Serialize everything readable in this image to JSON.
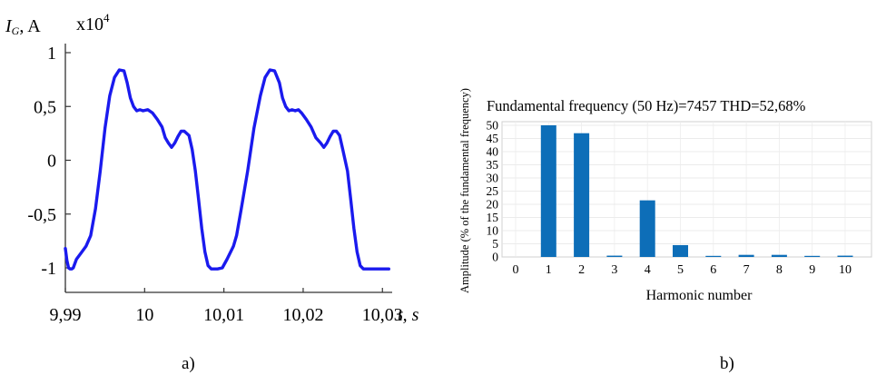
{
  "figure": {
    "panel_a_caption": "a)",
    "panel_b_caption": "b)"
  },
  "chart_data": [
    {
      "type": "line",
      "panel": "a",
      "title": "",
      "ylabel_symbol": "I",
      "ylabel_sub": "G",
      "ylabel_unit": ", A",
      "multiplier_base": "x10",
      "multiplier_exp": "4",
      "xlabel_t": "t",
      "xlabel_unit": ", s",
      "xlim": [
        9.99,
        10.031
      ],
      "ylim": [
        -1.05,
        1.05
      ],
      "x_ticks": [
        9.99,
        10.0,
        10.01,
        10.02,
        10.03
      ],
      "x_tick_labels": [
        "9,99",
        "10",
        "10,01",
        "10,02",
        "10,03"
      ],
      "y_ticks": [
        1,
        0.5,
        0,
        -0.5,
        -1
      ],
      "y_tick_labels": [
        "1",
        "0,5",
        "0",
        "-0,5",
        "-1"
      ],
      "line_color": "#1a1aee",
      "series": [
        {
          "x": [
            9.99,
            9.9902,
            9.9904,
            9.9906,
            9.9908,
            9.991,
            9.9914,
            9.992,
            9.9926,
            9.9932,
            9.9938,
            9.9944,
            9.995,
            9.9956,
            9.9962,
            9.9968,
            9.9974,
            9.9978,
            9.9982,
            9.9986,
            9.999,
            9.9994,
            9.9998,
            10.0004,
            10.001,
            10.0016,
            10.0022,
            10.0026,
            10.003,
            10.0034,
            10.0038,
            10.0042,
            10.0046,
            10.005,
            10.0056,
            10.006,
            10.0064,
            10.0068,
            10.0072,
            10.0076,
            10.008,
            10.0084,
            10.0088,
            10.0092,
            10.0098,
            10.0104,
            10.0108,
            10.0112,
            10.0116,
            10.0122,
            10.013,
            10.0138,
            10.0146,
            10.0152,
            10.0158,
            10.0164,
            10.017,
            10.0174,
            10.0178,
            10.0182,
            10.0186,
            10.019,
            10.0194,
            10.0198,
            10.0204,
            10.021,
            10.0216,
            10.0222,
            10.0226,
            10.023,
            10.0234,
            10.0238,
            10.0242,
            10.0246,
            10.025,
            10.0256,
            10.026,
            10.0264,
            10.0268,
            10.0272,
            10.0276,
            10.028,
            10.0284,
            10.0288,
            10.0292,
            10.0296,
            10.0302,
            10.0308
          ],
          "y": [
            -0.82,
            -0.93,
            -1.0,
            -1.01,
            -1.01,
            -1.0,
            -0.92,
            -0.86,
            -0.8,
            -0.7,
            -0.45,
            -0.1,
            0.3,
            0.6,
            0.77,
            0.84,
            0.83,
            0.72,
            0.58,
            0.5,
            0.46,
            0.47,
            0.46,
            0.47,
            0.44,
            0.38,
            0.31,
            0.21,
            0.16,
            0.12,
            0.16,
            0.22,
            0.27,
            0.27,
            0.23,
            0.1,
            -0.1,
            -0.36,
            -0.63,
            -0.85,
            -0.98,
            -1.01,
            -1.01,
            -1.01,
            -1.0,
            -0.92,
            -0.86,
            -0.8,
            -0.7,
            -0.45,
            -0.1,
            0.3,
            0.6,
            0.77,
            0.84,
            0.83,
            0.72,
            0.58,
            0.5,
            0.46,
            0.47,
            0.46,
            0.47,
            0.44,
            0.38,
            0.31,
            0.21,
            0.16,
            0.12,
            0.16,
            0.22,
            0.27,
            0.27,
            0.23,
            0.1,
            -0.1,
            -0.36,
            -0.63,
            -0.85,
            -0.98,
            -1.01,
            -1.01,
            -1.01,
            -1.01,
            -1.01,
            -1.01,
            -1.01,
            -1.01
          ]
        }
      ]
    },
    {
      "type": "bar",
      "panel": "b",
      "title": "Fundamental frequency (50 Hz)=7457 THD=52,68%",
      "xlabel": "Harmonic number",
      "ylabel": "Amplitude (% of the fundamental frequency)",
      "ylim": [
        0,
        50
      ],
      "y_ticks": [
        0,
        5,
        10,
        15,
        20,
        25,
        30,
        35,
        40,
        45,
        50
      ],
      "y_tick_labels": [
        "0",
        "5",
        "10",
        "15",
        "20",
        "25",
        "30",
        "35",
        "40",
        "45",
        "50"
      ],
      "categories": [
        "0",
        "1",
        "2",
        "3",
        "4",
        "5",
        "6",
        "7",
        "8",
        "9",
        "10"
      ],
      "values": [
        0,
        50,
        47,
        0.5,
        21.5,
        4.5,
        0.2,
        0.8,
        0.8,
        0.2,
        0.5
      ],
      "bar_color": "#0d6eb8",
      "grid": true
    }
  ]
}
